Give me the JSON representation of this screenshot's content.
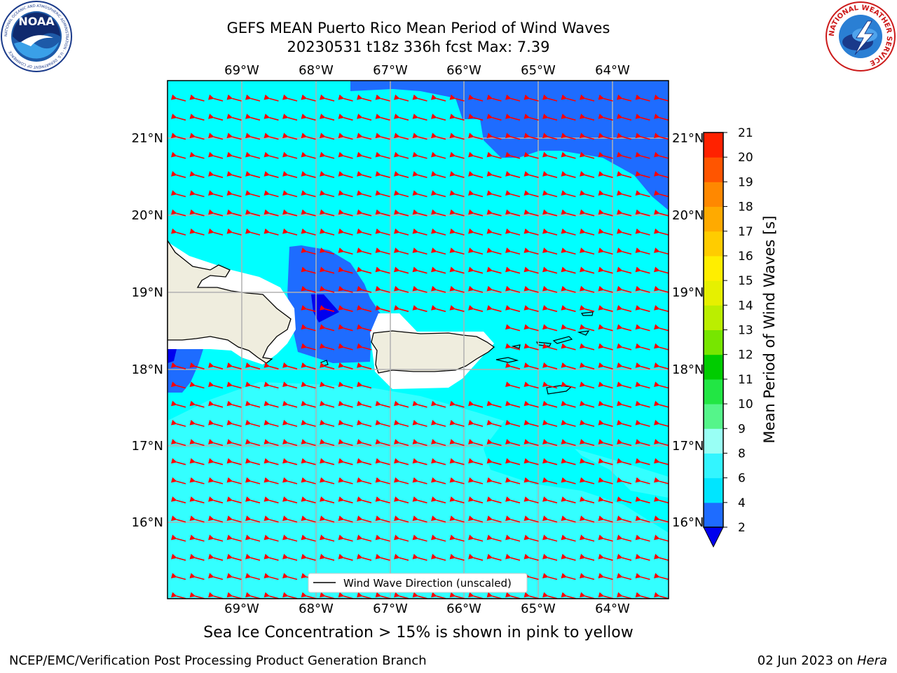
{
  "title_line1": "GEFS MEAN Puerto Rico Mean Period of Wind Waves",
  "title_line2": "20230531 t18z 336h fcst   Max: 7.39",
  "lon_labels": [
    "69°W",
    "68°W",
    "67°W",
    "66°W",
    "65°W",
    "64°W"
  ],
  "lat_labels": [
    "21°N",
    "20°N",
    "19°N",
    "18°N",
    "17°N",
    "16°N"
  ],
  "legend_label": "Wind Wave Direction (unscaled)",
  "colorbar": {
    "label": "Mean Period of Wind Waves [s]",
    "ticks": [
      "2",
      "4",
      "6",
      "8",
      "9",
      "10",
      "11",
      "12",
      "13",
      "14",
      "15",
      "16",
      "17",
      "18",
      "19",
      "20",
      "21"
    ],
    "colors": [
      "#1e6cff",
      "#00e5ff",
      "#33f5ff",
      "#99fff5",
      "#55f58a",
      "#22e644",
      "#00cc00",
      "#77e600",
      "#bbee00",
      "#e6f000",
      "#ffee00",
      "#ffcc00",
      "#ffaa00",
      "#ff8800",
      "#ff5500",
      "#ff2200"
    ],
    "under_color": "#0000ee"
  },
  "caption": "Sea Ice Concentration > 15% is shown in pink to yellow",
  "footer_left": "NCEP/EMC/Verification Post Processing Product Generation Branch",
  "footer_right_date": "02 Jun 2023 on ",
  "footer_right_host": "Hera",
  "logos": {
    "noaa": "NOAA",
    "noaa_ring": "NATIONAL OCEANIC AND ATMOSPHERIC ADMINISTRATION · U.S. DEPARTMENT OF COMMERCE",
    "nws_ring": "NATIONAL WEATHER SERVICE"
  },
  "colors": {
    "land": "#efedde",
    "arrow": "#ff0000",
    "grid": "#b0b0b0",
    "sea_base": "#00ffff",
    "sea_light": "#33ffff"
  },
  "icons": {
    "noaa": "noaa-logo-icon",
    "nws": "nws-logo-icon"
  }
}
